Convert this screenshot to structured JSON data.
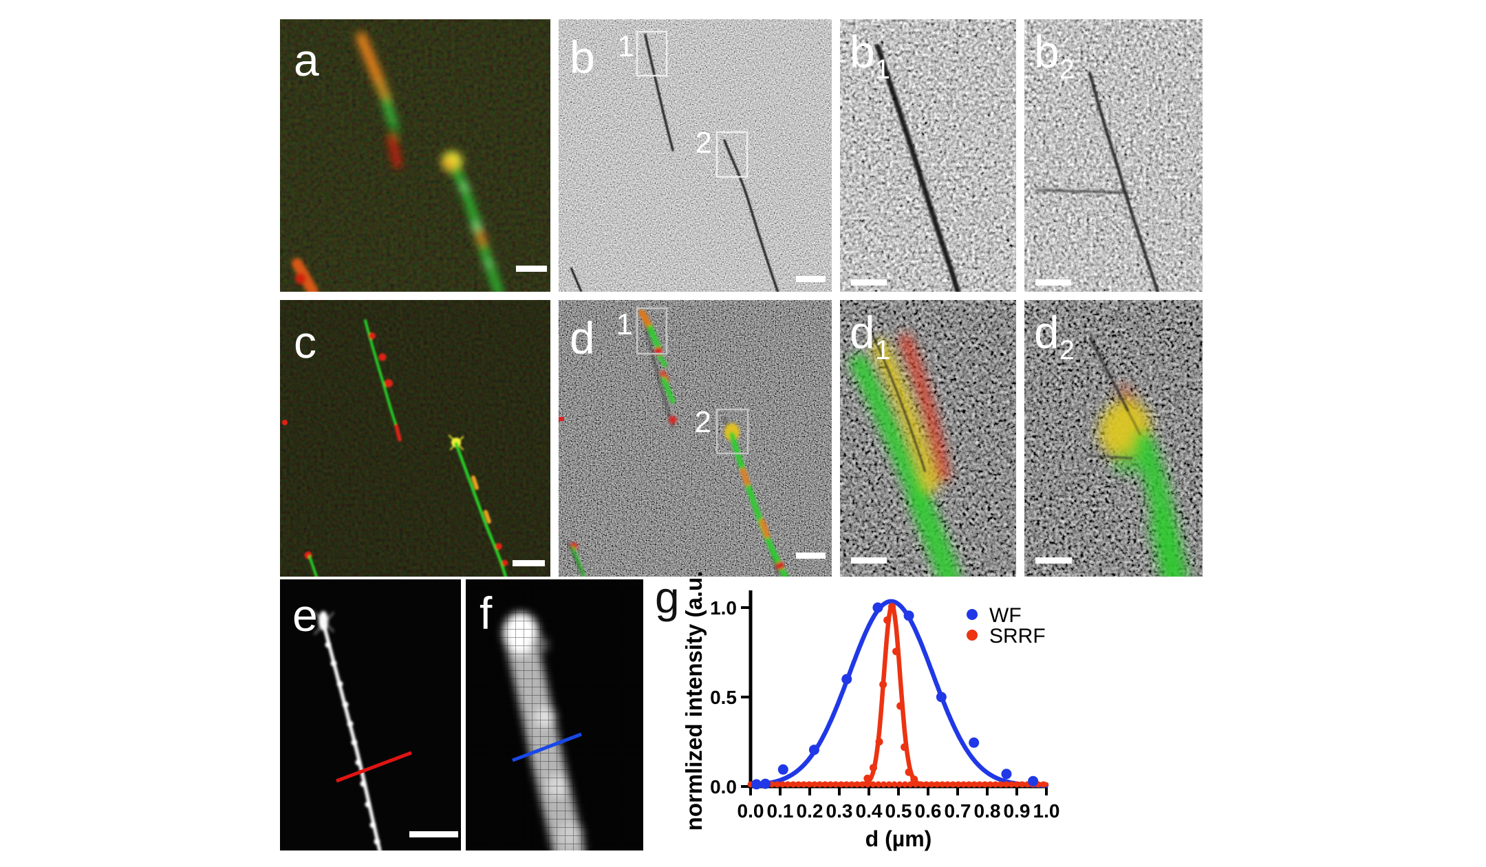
{
  "figure": {
    "panels": {
      "a": {
        "label": "a"
      },
      "b": {
        "label": "b",
        "box1": "1",
        "box2": "2"
      },
      "b1": {
        "label_base": "b",
        "label_sub": "1"
      },
      "b2": {
        "label_base": "b",
        "label_sub": "2"
      },
      "c": {
        "label": "c"
      },
      "d": {
        "label": "d",
        "box1": "1",
        "box2": "2"
      },
      "d1": {
        "label_base": "d",
        "label_sub": "1"
      },
      "d2": {
        "label_base": "d",
        "label_sub": "2"
      },
      "e": {
        "label": "e"
      },
      "f": {
        "label": "f"
      },
      "g": {
        "label": "g"
      }
    },
    "colors": {
      "fluor_green": "#2ecc2e",
      "fluor_red": "#e02015",
      "fluor_orange": "#e8821c",
      "fluor_yellow": "#f0f038",
      "em_light_bg": "#8f8f8f",
      "em_dark_bg": "#4b4b4b",
      "scale_bar": "#ffffff",
      "profile_line_e": "#e01414",
      "profile_line_f": "#1848e8"
    }
  },
  "chart_data": {
    "type": "scatter",
    "title": "",
    "xlabel": "d (µm)",
    "ylabel": "normlized intensity (a.u.)",
    "xlim": [
      0.0,
      1.0
    ],
    "ylim": [
      0.0,
      1.08
    ],
    "xticks": [
      0.0,
      0.1,
      0.2,
      0.3,
      0.4,
      0.5,
      0.6,
      0.7,
      0.8,
      0.9,
      1.0
    ],
    "yticks": [
      0.0,
      0.5,
      1.0
    ],
    "grid": false,
    "legend_position": "top-right",
    "series": [
      {
        "name": "WF",
        "color": "#2038e6",
        "marker": "circle",
        "marker_radius": 7.5,
        "points": [
          [
            0.02,
            0.012
          ],
          [
            0.05,
            0.015
          ],
          [
            0.11,
            0.095
          ],
          [
            0.215,
            0.205
          ],
          [
            0.325,
            0.6
          ],
          [
            0.43,
            1.0
          ],
          [
            0.535,
            0.955
          ],
          [
            0.645,
            0.5
          ],
          [
            0.755,
            0.245
          ],
          [
            0.865,
            0.07
          ],
          [
            0.955,
            0.03
          ]
        ],
        "fit": {
          "type": "gaussian",
          "amplitude": 1.03,
          "center": 0.475,
          "sigma": 0.141,
          "baseline": 0.005
        }
      },
      {
        "name": "SRRF",
        "color": "#ec3312",
        "marker": "circle",
        "marker_radius": 5.5,
        "points": [
          [
            0.395,
            0.045
          ],
          [
            0.415,
            0.105
          ],
          [
            0.435,
            0.25
          ],
          [
            0.448,
            0.57
          ],
          [
            0.462,
            0.93
          ],
          [
            0.478,
            1.005
          ],
          [
            0.492,
            0.755
          ],
          [
            0.506,
            0.45
          ],
          [
            0.52,
            0.22
          ],
          [
            0.535,
            0.08
          ],
          [
            0.553,
            0.04
          ]
        ],
        "baseline_dots": {
          "x_start": 0.0,
          "x_end": 1.0,
          "step": 0.018,
          "y": 0.012,
          "radius": 4.5
        },
        "fit": {
          "type": "gaussian",
          "amplitude": 1.0,
          "center": 0.478,
          "sigma": 0.0275,
          "baseline": 0.012
        }
      }
    ]
  }
}
